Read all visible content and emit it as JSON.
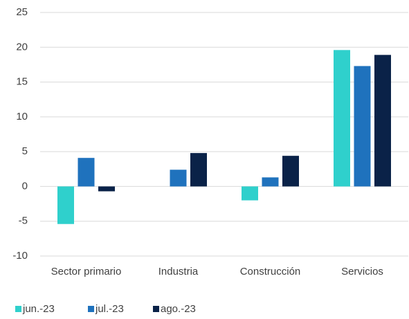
{
  "chart_data": {
    "type": "bar",
    "categories": [
      "Sector primario",
      "Industria",
      "Construcción",
      "Servicios"
    ],
    "series": [
      {
        "name": "jun.-23",
        "color": "#2fd0cc",
        "values": [
          -5.4,
          0,
          -2.0,
          19.6
        ]
      },
      {
        "name": "jul.-23",
        "color": "#1f72bd",
        "values": [
          4.1,
          2.4,
          1.3,
          17.3
        ]
      },
      {
        "name": "ago.-23",
        "color": "#0a2248",
        "values": [
          -0.7,
          4.8,
          4.4,
          18.9
        ]
      }
    ],
    "ylim": [
      -10,
      25
    ],
    "yticks": [
      -10,
      -5,
      0,
      5,
      10,
      15,
      20,
      25
    ],
    "grid": true,
    "legend": "bottom"
  }
}
